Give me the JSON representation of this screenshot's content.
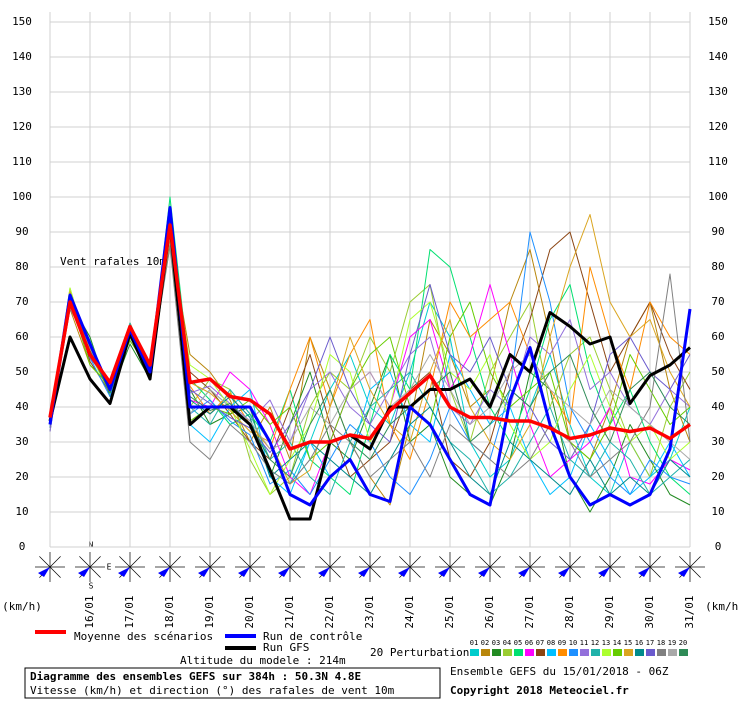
{
  "chart_data": {
    "type": "line",
    "annotation": "Vent rafales 10m",
    "y_unit_left": "(km/h)",
    "y_unit_right": "(km/h)",
    "xlim": [
      0,
      384
    ],
    "x": [
      0,
      12,
      24,
      36,
      48,
      60,
      72,
      84,
      96,
      108,
      120,
      132,
      144,
      156,
      168,
      180,
      192,
      204,
      216,
      228,
      240,
      252,
      264,
      276,
      288,
      300,
      312,
      324,
      336,
      348,
      360,
      372,
      384
    ],
    "xticks": [
      {
        "value": 24,
        "label": "16/01"
      },
      {
        "value": 48,
        "label": "17/01"
      },
      {
        "value": 72,
        "label": "18/01"
      },
      {
        "value": 96,
        "label": "19/01"
      },
      {
        "value": 120,
        "label": "20/01"
      },
      {
        "value": 144,
        "label": "21/01"
      },
      {
        "value": 168,
        "label": "22/01"
      },
      {
        "value": 192,
        "label": "23/01"
      },
      {
        "value": 216,
        "label": "24/01"
      },
      {
        "value": 240,
        "label": "25/01"
      },
      {
        "value": 264,
        "label": "26/01"
      },
      {
        "value": 288,
        "label": "27/01"
      },
      {
        "value": 312,
        "label": "28/01"
      },
      {
        "value": 336,
        "label": "29/01"
      },
      {
        "value": 360,
        "label": "30/01"
      },
      {
        "value": 384,
        "label": "31/01"
      }
    ],
    "ylim": [
      0,
      155
    ],
    "yticks": [
      0,
      10,
      20,
      30,
      40,
      50,
      60,
      70,
      80,
      90,
      100,
      110,
      120,
      130,
      140,
      150
    ],
    "grid": true,
    "compass": [
      "N",
      "E",
      "S"
    ],
    "series": [
      {
        "name": "Moyenne des scénarios",
        "color": "#ff0000",
        "values": [
          37,
          70,
          55,
          47,
          63,
          52,
          92,
          47,
          48,
          43,
          42,
          38,
          28,
          30,
          30,
          32,
          31,
          39,
          44,
          49,
          40,
          37,
          37,
          36,
          36,
          34,
          31,
          32,
          34,
          33,
          34,
          31,
          35
        ]
      },
      {
        "name": "Run de contrôle",
        "color": "#0000ff",
        "values": [
          35,
          72,
          58,
          45,
          62,
          50,
          97,
          40,
          40,
          40,
          40,
          30,
          15,
          12,
          20,
          25,
          15,
          13,
          40,
          35,
          25,
          15,
          12,
          42,
          57,
          35,
          20,
          12,
          15,
          12,
          15,
          28,
          68
        ]
      },
      {
        "name": "Run GFS",
        "color": "#000000",
        "values": [
          36,
          60,
          48,
          41,
          61,
          48,
          92,
          35,
          40,
          40,
          35,
          22,
          8,
          8,
          30,
          32,
          28,
          40,
          40,
          45,
          45,
          48,
          40,
          55,
          50,
          67,
          63,
          58,
          60,
          41,
          49,
          52,
          57
        ]
      }
    ],
    "perturbations_label": "20 Perturbations",
    "perturbations": [
      {
        "name": "01",
        "color": "#00cccc",
        "values": [
          34,
          72,
          57,
          44,
          60,
          49,
          95,
          38,
          45,
          40,
          35,
          22,
          18,
          30,
          45,
          55,
          40,
          35,
          50,
          70,
          60,
          30,
          20,
          25,
          40,
          55,
          35,
          20,
          15,
          30,
          20,
          25,
          40
        ]
      },
      {
        "name": "02",
        "color": "#b8860b",
        "values": [
          36,
          68,
          52,
          46,
          64,
          51,
          88,
          55,
          50,
          42,
          30,
          40,
          25,
          60,
          45,
          30,
          20,
          12,
          35,
          65,
          55,
          40,
          45,
          70,
          85,
          60,
          30,
          25,
          40,
          60,
          70,
          45,
          30
        ]
      },
      {
        "name": "03",
        "color": "#228b22",
        "values": [
          33,
          70,
          60,
          43,
          58,
          48,
          92,
          45,
          35,
          38,
          40,
          20,
          35,
          50,
          30,
          25,
          40,
          55,
          30,
          35,
          20,
          15,
          12,
          25,
          50,
          45,
          20,
          10,
          20,
          35,
          25,
          15,
          12
        ]
      },
      {
        "name": "04",
        "color": "#9acd32",
        "values": [
          35,
          74,
          54,
          47,
          63,
          52,
          86,
          40,
          48,
          45,
          25,
          15,
          20,
          40,
          50,
          45,
          60,
          50,
          70,
          75,
          45,
          30,
          50,
          60,
          70,
          40,
          55,
          60,
          45,
          30,
          20,
          40,
          50
        ]
      },
      {
        "name": "05",
        "color": "#00e070",
        "values": [
          34,
          71,
          56,
          45,
          61,
          50,
          100,
          48,
          42,
          35,
          38,
          30,
          45,
          25,
          20,
          15,
          35,
          55,
          45,
          85,
          80,
          60,
          40,
          30,
          45,
          65,
          75,
          50,
          35,
          45,
          30,
          20,
          15
        ]
      },
      {
        "name": "06",
        "color": "#ff00ff",
        "values": [
          36,
          69,
          58,
          46,
          62,
          49,
          90,
          42,
          40,
          50,
          45,
          35,
          20,
          15,
          30,
          45,
          50,
          40,
          60,
          65,
          45,
          55,
          75,
          55,
          35,
          20,
          25,
          30,
          40,
          20,
          18,
          25,
          22
        ]
      },
      {
        "name": "07",
        "color": "#8b4513",
        "values": [
          35,
          73,
          53,
          44,
          60,
          51,
          94,
          50,
          45,
          38,
          30,
          25,
          40,
          55,
          35,
          20,
          25,
          30,
          45,
          50,
          25,
          20,
          30,
          50,
          65,
          85,
          90,
          70,
          50,
          60,
          70,
          55,
          45
        ]
      },
      {
        "name": "08",
        "color": "#00bfff",
        "values": [
          34,
          70,
          55,
          45,
          63,
          50,
          89,
          35,
          30,
          40,
          45,
          20,
          15,
          30,
          20,
          25,
          45,
          50,
          35,
          30,
          55,
          45,
          35,
          40,
          25,
          15,
          20,
          35,
          25,
          15,
          20,
          30,
          20
        ]
      },
      {
        "name": "09",
        "color": "#ff8c00",
        "values": [
          36,
          72,
          57,
          46,
          61,
          48,
          93,
          46,
          38,
          44,
          35,
          28,
          45,
          60,
          40,
          55,
          65,
          35,
          25,
          45,
          70,
          60,
          65,
          70,
          55,
          45,
          35,
          80,
          60,
          45,
          70,
          60,
          55
        ]
      },
      {
        "name": "10",
        "color": "#1e90ff",
        "values": [
          35,
          71,
          54,
          43,
          62,
          52,
          91,
          38,
          42,
          36,
          32,
          18,
          22,
          15,
          25,
          35,
          30,
          20,
          15,
          25,
          40,
          30,
          25,
          45,
          90,
          70,
          40,
          30,
          20,
          15,
          25,
          20,
          18
        ]
      },
      {
        "name": "11",
        "color": "#9370db",
        "values": [
          33,
          69,
          56,
          47,
          60,
          50,
          87,
          44,
          46,
          41,
          36,
          42,
          30,
          45,
          50,
          40,
          35,
          45,
          55,
          60,
          40,
          35,
          45,
          40,
          60,
          55,
          65,
          45,
          50,
          40,
          35,
          45,
          40
        ]
      },
      {
        "name": "12",
        "color": "#20b2aa",
        "values": [
          36,
          70,
          59,
          45,
          64,
          49,
          96,
          40,
          35,
          45,
          38,
          25,
          30,
          20,
          15,
          30,
          40,
          45,
          50,
          40,
          30,
          25,
          15,
          20,
          30,
          40,
          25,
          20,
          30,
          25,
          15,
          20,
          25
        ]
      },
      {
        "name": "13",
        "color": "#adff2f",
        "values": [
          35,
          74,
          55,
          44,
          61,
          51,
          90,
          52,
          48,
          40,
          28,
          15,
          25,
          35,
          55,
          50,
          30,
          40,
          65,
          70,
          50,
          45,
          55,
          35,
          25,
          30,
          45,
          55,
          40,
          30,
          35,
          25,
          30
        ]
      },
      {
        "name": "14",
        "color": "#66cc00",
        "values": [
          34,
          71,
          52,
          46,
          59,
          50,
          92,
          36,
          40,
          38,
          42,
          35,
          40,
          25,
          30,
          45,
          55,
          60,
          40,
          35,
          60,
          70,
          50,
          40,
          45,
          50,
          30,
          25,
          35,
          55,
          45,
          35,
          40
        ]
      },
      {
        "name": "15",
        "color": "#daa520",
        "values": [
          36,
          73,
          57,
          45,
          62,
          48,
          88,
          47,
          44,
          39,
          33,
          30,
          18,
          22,
          40,
          60,
          45,
          35,
          30,
          50,
          65,
          40,
          30,
          25,
          35,
          60,
          80,
          95,
          70,
          60,
          65,
          50,
          40
        ]
      },
      {
        "name": "16",
        "color": "#008b8b",
        "values": [
          35,
          70,
          56,
          44,
          63,
          51,
          94,
          42,
          38,
          43,
          37,
          20,
          25,
          30,
          25,
          20,
          15,
          25,
          35,
          40,
          30,
          20,
          15,
          30,
          25,
          20,
          15,
          25,
          15,
          20,
          15,
          25,
          20
        ]
      },
      {
        "name": "17",
        "color": "#6a5acd",
        "values": [
          34,
          72,
          54,
          47,
          60,
          49,
          91,
          45,
          41,
          37,
          34,
          27,
          35,
          45,
          60,
          45,
          35,
          30,
          55,
          75,
          55,
          50,
          60,
          45,
          40,
          30,
          25,
          35,
          55,
          60,
          50,
          45,
          55
        ]
      },
      {
        "name": "18",
        "color": "#808080",
        "values": [
          35,
          68,
          58,
          45,
          61,
          50,
          86,
          30,
          25,
          35,
          30,
          22,
          18,
          25,
          35,
          30,
          20,
          25,
          30,
          20,
          35,
          30,
          25,
          20,
          25,
          35,
          30,
          20,
          25,
          30,
          40,
          78,
          30
        ]
      },
      {
        "name": "19",
        "color": "#a9a9a9",
        "values": [
          36,
          71,
          55,
          46,
          62,
          52,
          89,
          38,
          45,
          40,
          36,
          28,
          30,
          40,
          35,
          45,
          50,
          40,
          45,
          55,
          45,
          35,
          40,
          50,
          55,
          45,
          40,
          35,
          45,
          40,
          35,
          30,
          25
        ]
      },
      {
        "name": "20",
        "color": "#2e8b57",
        "values": [
          35,
          70,
          56,
          44,
          60,
          50,
          93,
          43,
          39,
          41,
          35,
          25,
          20,
          35,
          45,
          30,
          25,
          35,
          40,
          45,
          50,
          30,
          35,
          45,
          40,
          50,
          55,
          40,
          30,
          45,
          50,
          40,
          35
        ]
      }
    ],
    "altitude": "Altitude du modele : 214m",
    "footer_title": "Diagramme des ensembles GEFS sur 384h : 50.3N 4.8E",
    "footer_subtitle": "Vitesse (km/h) et direction (°) des rafales de vent 10m",
    "run_info": "Ensemble GEFS du 15/01/2018 - 06Z",
    "copyright": "Copyright 2018 Meteociel.fr"
  }
}
